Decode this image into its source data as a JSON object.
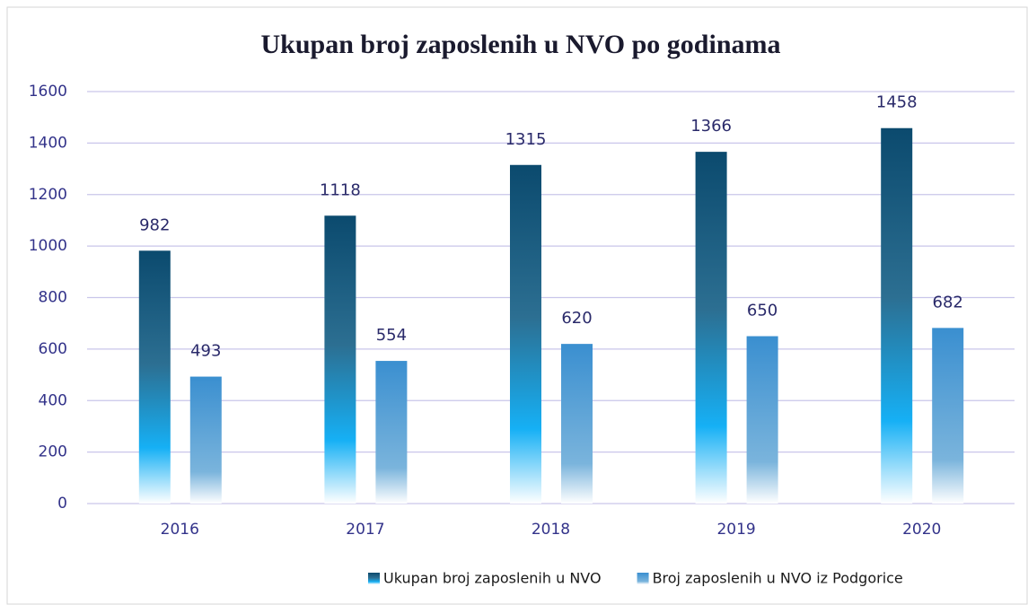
{
  "chart_data": {
    "type": "bar",
    "title": "Ukupan broj zaposlenih u NVO po godinama",
    "categories": [
      "2016",
      "2017",
      "2018",
      "2019",
      "2020"
    ],
    "series": [
      {
        "name": "Ukupan broj zaposlenih u NVO",
        "color": "#0b4a6e",
        "values": [
          982,
          1118,
          1315,
          1366,
          1458
        ]
      },
      {
        "name": "Broj zaposlenih u NVO iz Podgorice",
        "color": "#3a8fd0",
        "values": [
          493,
          554,
          620,
          650,
          682
        ]
      }
    ],
    "ylim": [
      0,
      1600
    ],
    "yticks": [
      0,
      200,
      400,
      600,
      800,
      1000,
      1200,
      1400,
      1600
    ],
    "grid": true,
    "legend": "bottom"
  }
}
